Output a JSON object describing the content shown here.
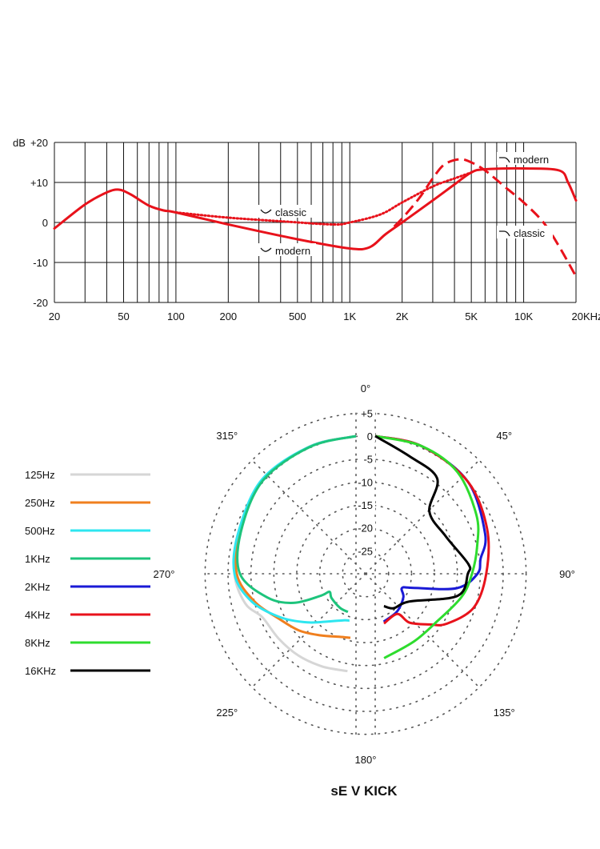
{
  "chart_data": [
    {
      "type": "line",
      "xscale": "log",
      "xlim": [
        20,
        20000
      ],
      "ylim": [
        -20,
        20
      ],
      "grid": true,
      "ylabel": "dB",
      "x_ticks": [
        {
          "value": 20,
          "label": "20"
        },
        {
          "value": 50,
          "label": "50"
        },
        {
          "value": 100,
          "label": "100"
        },
        {
          "value": 200,
          "label": "200"
        },
        {
          "value": 500,
          "label": "500"
        },
        {
          "value": 1000,
          "label": "1K"
        },
        {
          "value": 2000,
          "label": "2K"
        },
        {
          "value": 5000,
          "label": "5K"
        },
        {
          "value": 10000,
          "label": "10K"
        },
        {
          "value": 20000,
          "label": "20KHz"
        }
      ],
      "y_ticks": [
        {
          "value": 20,
          "label": "+20"
        },
        {
          "value": 10,
          "label": "+10"
        },
        {
          "value": 0,
          "label": "0"
        },
        {
          "value": -10,
          "label": "-10"
        },
        {
          "value": -20,
          "label": "-20"
        }
      ],
      "color": "#e8121b",
      "series": [
        {
          "style": "solid",
          "points": [
            [
              20,
              -1.5
            ],
            [
              30,
              4.5
            ],
            [
              40,
              7.5
            ],
            [
              47,
              8.2
            ],
            [
              55,
              7
            ],
            [
              70,
              4.2
            ],
            [
              85,
              3
            ],
            [
              100,
              2.5
            ],
            [
              200,
              -0.5
            ],
            [
              500,
              -4.2
            ],
            [
              1000,
              -6.5
            ],
            [
              1300,
              -6.2
            ],
            [
              1600,
              -3
            ],
            [
              2000,
              0
            ],
            [
              3000,
              5.5
            ],
            [
              4000,
              9.5
            ],
            [
              5000,
              12.5
            ],
            [
              6000,
              13.3
            ],
            [
              10000,
              13.5
            ],
            [
              16000,
              13
            ],
            [
              18000,
              10
            ],
            [
              20000,
              5.5
            ]
          ]
        },
        {
          "style": "dotted",
          "points": [
            [
              100,
              2.5
            ],
            [
              200,
              1.2
            ],
            [
              400,
              0.3
            ],
            [
              800,
              -0.5
            ],
            [
              1000,
              0
            ],
            [
              1500,
              2
            ],
            [
              2000,
              5
            ],
            [
              3000,
              9
            ],
            [
              4000,
              11
            ],
            [
              5000,
              12.5
            ]
          ]
        },
        {
          "style": "dashed",
          "points": [
            [
              1800,
              -1
            ],
            [
              2000,
              1
            ],
            [
              2500,
              6
            ],
            [
              3000,
              11
            ],
            [
              3500,
              14.5
            ],
            [
              4300,
              15.8
            ],
            [
              5000,
              15
            ],
            [
              6000,
              13
            ],
            [
              8000,
              8.5
            ],
            [
              10000,
              5
            ],
            [
              13000,
              0
            ],
            [
              16000,
              -6
            ],
            [
              20000,
              -13.5
            ]
          ]
        }
      ],
      "annotations": [
        {
          "text": "classic",
          "icon": "low-shelf-cut-icon"
        },
        {
          "text": "modern",
          "icon": "low-shelf-cut-icon"
        },
        {
          "text": "modern",
          "icon": "high-shelf-icon"
        },
        {
          "text": "classic",
          "icon": "high-shelf-icon"
        }
      ]
    },
    {
      "type": "polar",
      "title": "sE V KICK",
      "rlim": [
        -30,
        5
      ],
      "r_ticks": [
        "+5",
        "0",
        "-5",
        "-10",
        "-15",
        "-20",
        "-25"
      ],
      "r_tick_values": [
        5,
        0,
        -5,
        -10,
        -15,
        -20,
        -25
      ],
      "angle_ticks": [
        "0°",
        "45°",
        "90°",
        "135°",
        "180°",
        "225°",
        "270°",
        "315°"
      ],
      "legend_placement": "left",
      "series": [
        {
          "name": "125Hz",
          "color": "#d6d6d6",
          "side": "left",
          "points": [
            [
              0,
              0
            ],
            [
              20,
              -0.5
            ],
            [
              45,
              -1.2
            ],
            [
              70,
              -2.8
            ],
            [
              90,
              -3.5
            ],
            [
              105,
              -5
            ],
            [
              115,
              -7.5
            ],
            [
              130,
              -8
            ],
            [
              145,
              -8.2
            ],
            [
              160,
              -8.5
            ],
            [
              175,
              -8.7
            ]
          ]
        },
        {
          "name": "250Hz",
          "color": "#f07f1e",
          "side": "left",
          "points": [
            [
              0,
              0
            ],
            [
              20,
              -0.5
            ],
            [
              45,
              -1.2
            ],
            [
              70,
              -3
            ],
            [
              90,
              -4
            ],
            [
              105,
              -7
            ],
            [
              120,
              -10.5
            ],
            [
              135,
              -12.5
            ],
            [
              150,
              -14.5
            ],
            [
              165,
              -15.8
            ],
            [
              175,
              -16
            ]
          ]
        },
        {
          "name": "500Hz",
          "color": "#2ee6f0",
          "side": "left",
          "points": [
            [
              0,
              0
            ],
            [
              20,
              -0.5
            ],
            [
              45,
              -1
            ],
            [
              70,
              -2.8
            ],
            [
              90,
              -3.5
            ],
            [
              105,
              -6.5
            ],
            [
              120,
              -11
            ],
            [
              135,
              -15
            ],
            [
              150,
              -18
            ],
            [
              165,
              -19.5
            ],
            [
              172,
              -19.7
            ]
          ]
        },
        {
          "name": "1KHz",
          "color": "#1dc47c",
          "side": "left",
          "points": [
            [
              0,
              0
            ],
            [
              20,
              -0.6
            ],
            [
              45,
              -1.3
            ],
            [
              70,
              -3.3
            ],
            [
              90,
              -4.7
            ],
            [
              105,
              -10
            ],
            [
              115,
              -15
            ],
            [
              122,
              -21
            ],
            [
              124,
              -23
            ],
            [
              135,
              -22.5
            ],
            [
              155,
              -21.8
            ],
            [
              168,
              -21.5
            ]
          ]
        },
        {
          "name": "2KHz",
          "color": "#1a1ad6",
          "side": "right",
          "points": [
            [
              0,
              0
            ],
            [
              20,
              -0.4
            ],
            [
              45,
              -1.5
            ],
            [
              70,
              -4.5
            ],
            [
              82,
              -6.8
            ],
            [
              90,
              -7.7
            ],
            [
              100,
              -11.9
            ],
            [
              110,
              -21
            ],
            [
              118,
              -23.4
            ],
            [
              130,
              -22
            ],
            [
              150,
              -20.5
            ],
            [
              170,
              -19.4
            ]
          ]
        },
        {
          "name": "4KHz",
          "color": "#e8121b",
          "side": "right",
          "points": [
            [
              0,
              0
            ],
            [
              20,
              -0.4
            ],
            [
              45,
              -1.5
            ],
            [
              68,
              -3.7
            ],
            [
              90,
              -5.8
            ],
            [
              109,
              -7.3
            ],
            [
              125,
              -11
            ],
            [
              133,
              -13.8
            ],
            [
              145,
              -17
            ],
            [
              151,
              -20
            ],
            [
              170,
              -19
            ]
          ]
        },
        {
          "name": "8KHz",
          "color": "#2edc2e",
          "side": "right",
          "points": [
            [
              0,
              0
            ],
            [
              20,
              -0.4
            ],
            [
              39,
              -1.5
            ],
            [
              60,
              -4.5
            ],
            [
              75,
              -7
            ],
            [
              90,
              -8.9
            ],
            [
              105,
              -10.5
            ],
            [
              128,
              -13
            ],
            [
              150,
              -13
            ],
            [
              174,
              -11.5
            ]
          ]
        },
        {
          "name": "16KHz",
          "color": "#000000",
          "side": "right",
          "points": [
            [
              0,
              0
            ],
            [
              16,
              -3.3
            ],
            [
              33,
              -5.2
            ],
            [
              41,
              -12
            ],
            [
              62,
              -12.6
            ],
            [
              84,
              -9.6
            ],
            [
              90,
              -9.8
            ],
            [
              105,
              -11.4
            ],
            [
              129,
              -20.4
            ],
            [
              152,
              -21.5
            ],
            [
              165,
              -22.7
            ]
          ]
        }
      ]
    }
  ]
}
